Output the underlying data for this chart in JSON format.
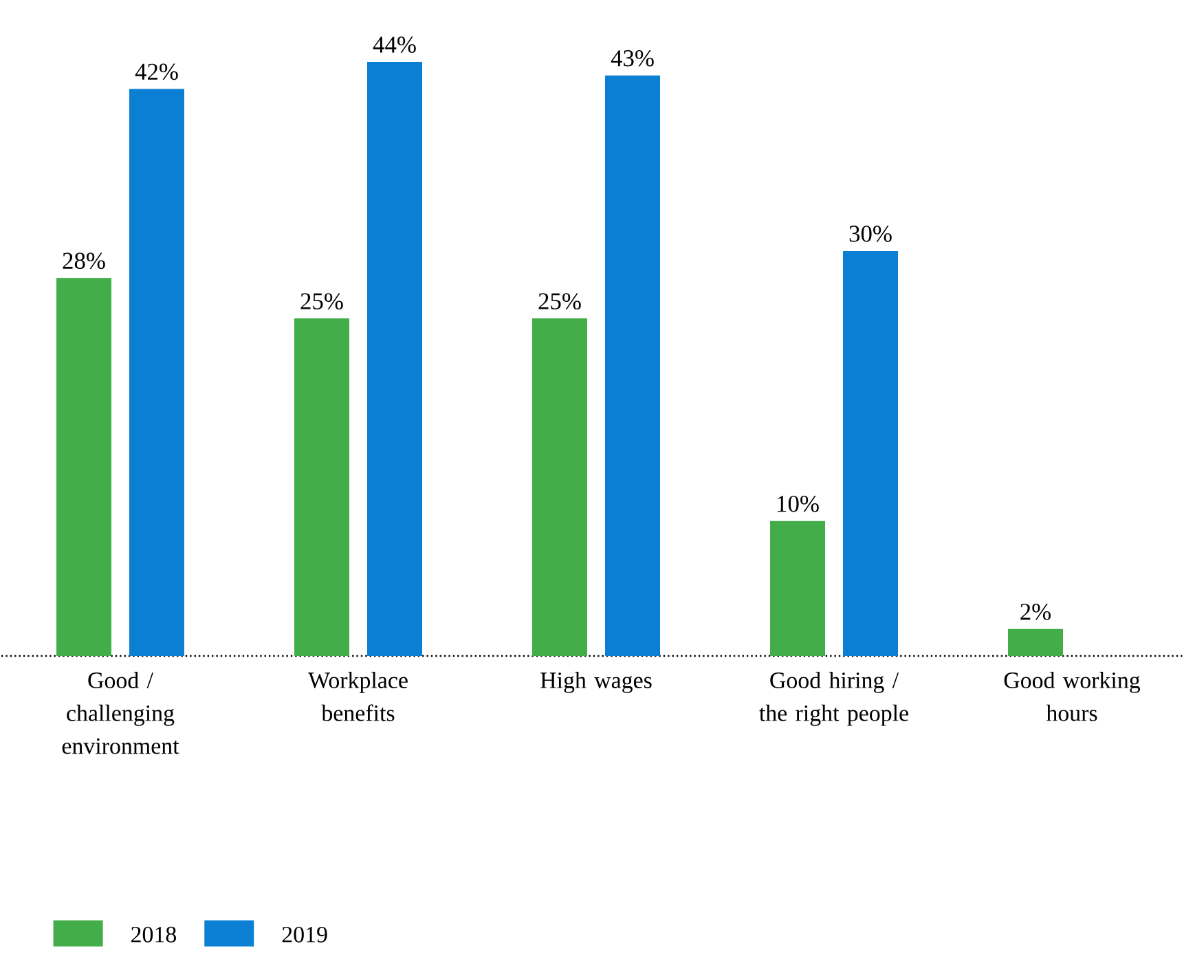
{
  "chart_data": {
    "type": "bar",
    "categories": [
      "Good / challenging environment",
      "Workplace benefits",
      "High wages",
      "Good hiring / the right people",
      "Good working hours"
    ],
    "series": [
      {
        "name": "2018",
        "color": "#43ad49",
        "values": [
          28,
          25,
          25,
          10,
          2
        ],
        "value_labels": [
          "28%",
          "25%",
          "25%",
          "10%",
          "2%"
        ]
      },
      {
        "name": "2019",
        "color": "#0a7fd4",
        "values": [
          42,
          44,
          43,
          30,
          null
        ],
        "value_labels": [
          "42%",
          "44%",
          "43%",
          "30%",
          null
        ]
      }
    ],
    "legend": "bottom left"
  }
}
